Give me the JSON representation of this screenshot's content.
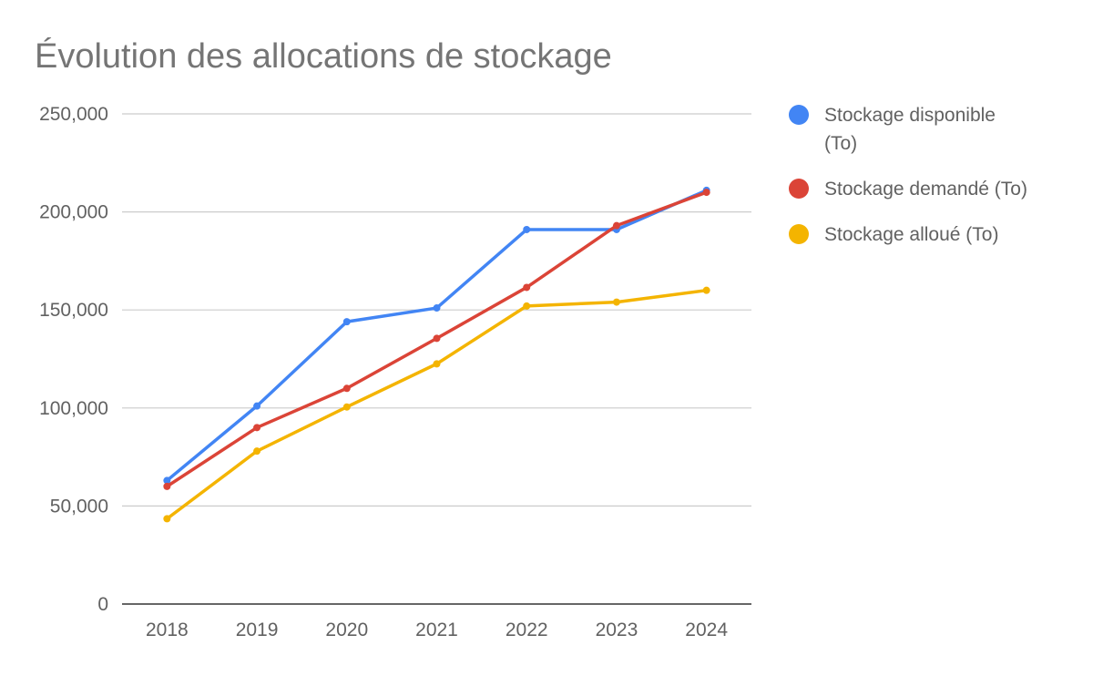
{
  "chart_data": {
    "type": "line",
    "title": "Évolution des allocations de stockage",
    "xlabel": "",
    "ylabel": "",
    "categories": [
      "2018",
      "2019",
      "2020",
      "2021",
      "2022",
      "2023",
      "2024"
    ],
    "ylim": [
      0,
      250000
    ],
    "yticks": [
      0,
      50000,
      100000,
      150000,
      200000,
      250000
    ],
    "ytick_labels": [
      "0",
      "50,000",
      "100,000",
      "150,000",
      "200,000",
      "250,000"
    ],
    "grid": true,
    "legend_position": "right",
    "series": [
      {
        "name": "Stockage disponible (To)",
        "legend_lines": [
          "Stockage disponible",
          "(To)"
        ],
        "color": "#4285F4",
        "values": [
          63000,
          101000,
          144000,
          151000,
          191000,
          191000,
          211000
        ]
      },
      {
        "name": "Stockage demandé (To)",
        "legend_lines": [
          "Stockage demandé (To)"
        ],
        "color": "#DB4437",
        "values": [
          60000,
          90000,
          110000,
          135500,
          161500,
          193000,
          210000
        ]
      },
      {
        "name": "Stockage alloué (To)",
        "legend_lines": [
          "Stockage alloué (To)"
        ],
        "color": "#F4B400",
        "values": [
          43500,
          78000,
          100500,
          122500,
          152000,
          154000,
          160000
        ]
      }
    ]
  }
}
